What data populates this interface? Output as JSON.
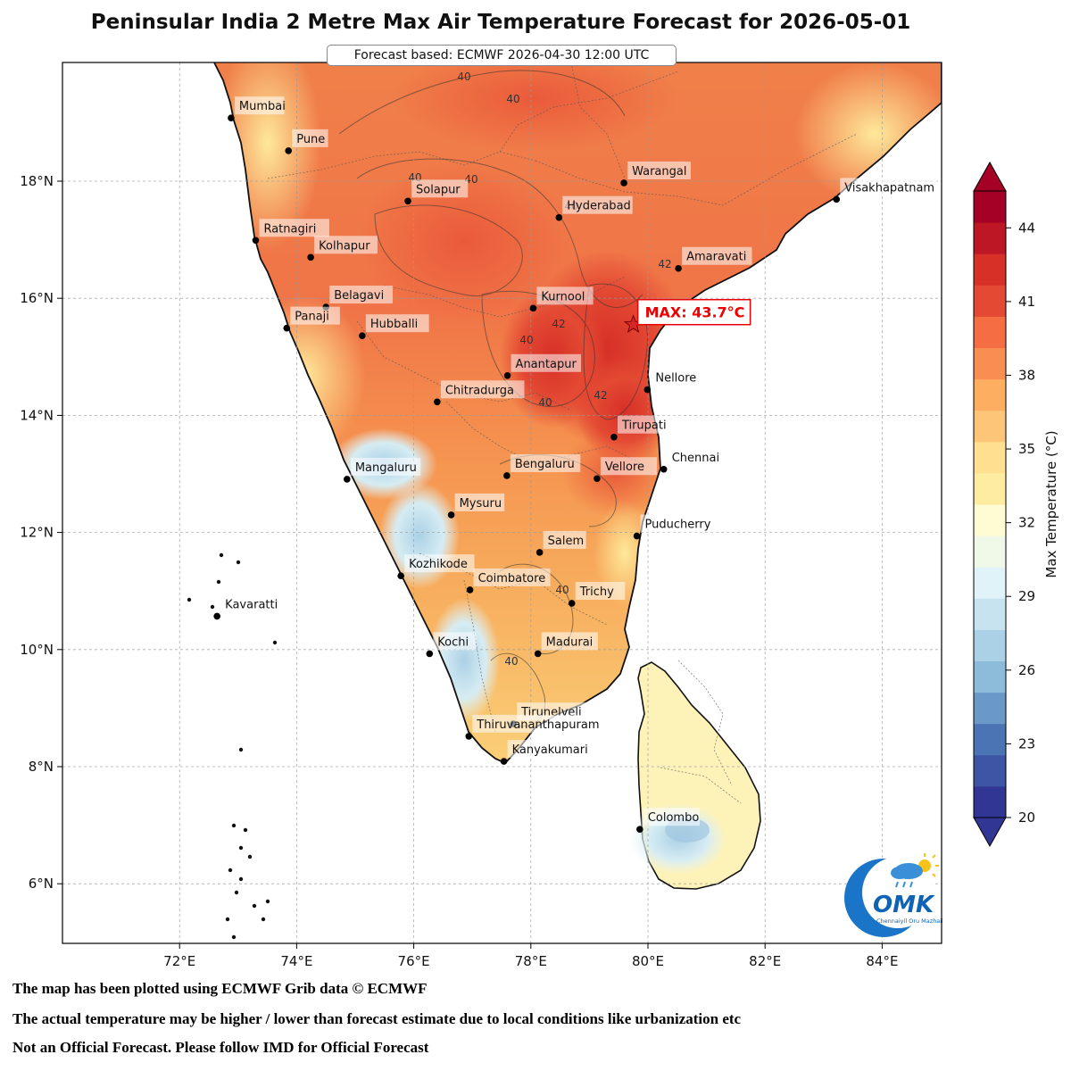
{
  "title": "Peninsular India 2 Metre Max Air Temperature Forecast for 2026-05-01",
  "subtitle": "Forecast based: ECMWF 2026-04-30 12:00 UTC",
  "colorbar": {
    "label": "Max Temperature (°C)",
    "ticks": [
      "44",
      "41",
      "38",
      "35",
      "32",
      "29",
      "26",
      "23",
      "20"
    ],
    "min": 20,
    "max": 45.5,
    "colors_low_to_high": [
      "#313695",
      "#3d55a4",
      "#4a74b4",
      "#6a99c7",
      "#8cbcda",
      "#abd1e6",
      "#c7e3ef",
      "#e0f3f8",
      "#f0f8e8",
      "#fffbd2",
      "#feeca1",
      "#fee090",
      "#fdc577",
      "#fdae61",
      "#f98e52",
      "#f46d43",
      "#e34933",
      "#d73027",
      "#bd1726",
      "#a50026"
    ]
  },
  "axes": {
    "x_ticks": [
      "72°E",
      "74°E",
      "76°E",
      "78°E",
      "80°E",
      "82°E",
      "84°E"
    ],
    "y_ticks": [
      "18°N",
      "16°N",
      "14°N",
      "12°N",
      "10°N",
      "8°N",
      "6°N"
    ]
  },
  "max_marker": {
    "label": "MAX: 43.7°C",
    "lon": 79.75,
    "lat": 15.55
  },
  "contour_labels": [
    "40",
    "40",
    "40",
    "40",
    "42",
    "42",
    "42",
    "40",
    "40",
    "40",
    "40",
    "40"
  ],
  "cities": [
    {
      "name": "Mumbai",
      "lon": 72.88,
      "lat": 19.08
    },
    {
      "name": "Pune",
      "lon": 73.86,
      "lat": 18.52
    },
    {
      "name": "Solapur",
      "lon": 75.9,
      "lat": 17.66
    },
    {
      "name": "Warangal",
      "lon": 79.59,
      "lat": 17.97
    },
    {
      "name": "Hyderabad",
      "lon": 78.48,
      "lat": 17.38
    },
    {
      "name": "Visakhapatnam",
      "lon": 83.22,
      "lat": 17.69
    },
    {
      "name": "Ratnagiri",
      "lon": 73.3,
      "lat": 16.99
    },
    {
      "name": "Kolhapur",
      "lon": 74.24,
      "lat": 16.7
    },
    {
      "name": "Amaravati",
      "lon": 80.52,
      "lat": 16.51
    },
    {
      "name": "Belagavi",
      "lon": 74.5,
      "lat": 15.85
    },
    {
      "name": "Panaji",
      "lon": 73.83,
      "lat": 15.49
    },
    {
      "name": "Kurnool",
      "lon": 78.04,
      "lat": 15.83
    },
    {
      "name": "Hubballi",
      "lon": 75.12,
      "lat": 15.36
    },
    {
      "name": "Anantapur",
      "lon": 77.6,
      "lat": 14.68
    },
    {
      "name": "Nellore",
      "lon": 79.99,
      "lat": 14.44
    },
    {
      "name": "Chitradurga",
      "lon": 76.4,
      "lat": 14.23
    },
    {
      "name": "Tirupati",
      "lon": 79.42,
      "lat": 13.63
    },
    {
      "name": "Chennai",
      "lon": 80.27,
      "lat": 13.08
    },
    {
      "name": "Mangaluru",
      "lon": 74.86,
      "lat": 12.91
    },
    {
      "name": "Bengaluru",
      "lon": 77.59,
      "lat": 12.97
    },
    {
      "name": "Vellore",
      "lon": 79.13,
      "lat": 12.92
    },
    {
      "name": "Mysuru",
      "lon": 76.64,
      "lat": 12.3
    },
    {
      "name": "Puducherry",
      "lon": 79.81,
      "lat": 11.94
    },
    {
      "name": "Salem",
      "lon": 78.15,
      "lat": 11.66
    },
    {
      "name": "Kozhikode",
      "lon": 75.78,
      "lat": 11.26
    },
    {
      "name": "Coimbatore",
      "lon": 76.96,
      "lat": 11.02
    },
    {
      "name": "Trichy",
      "lon": 78.7,
      "lat": 10.79
    },
    {
      "name": "Kavaratti",
      "lon": 72.64,
      "lat": 10.57
    },
    {
      "name": "Kochi",
      "lon": 76.27,
      "lat": 9.93
    },
    {
      "name": "Madurai",
      "lon": 78.12,
      "lat": 9.93
    },
    {
      "name": "Tirunelveli",
      "lon": 77.7,
      "lat": 8.73
    },
    {
      "name": "Thiruvananthapuram",
      "lon": 76.94,
      "lat": 8.52
    },
    {
      "name": "Kanyakumari",
      "lon": 77.54,
      "lat": 8.09
    },
    {
      "name": "Colombo",
      "lon": 79.86,
      "lat": 6.93
    }
  ],
  "footer": {
    "line1": "The map has been plotted using ECMWF Grib data © ECMWF",
    "line2": "The actual temperature may be higher / lower than forecast estimate due to local conditions like urbanization etc",
    "line3": "Not an Official Forecast. Please follow IMD for Official Forecast"
  },
  "logo": {
    "text": "OMK",
    "tagline": "Chennaiyil Oru Mazhaikaalam"
  }
}
